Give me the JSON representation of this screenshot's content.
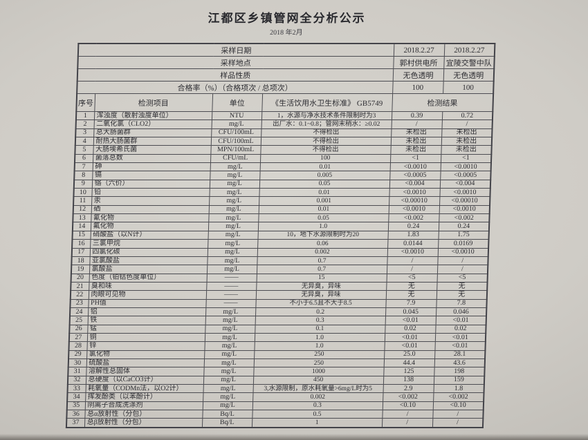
{
  "page": {
    "title": "江都区乡镇管网全分析公示",
    "subtitle": "2018 年2月"
  },
  "columns": {
    "no": "序号",
    "item": "检测项目",
    "unit": "单位",
    "standard": "《生活饮用水卫生标准》 GB5749",
    "result": "检测结果"
  },
  "info_rows": [
    {
      "label": "采样日期",
      "v1": "2018.2.27",
      "v2": "2018.2.27"
    },
    {
      "label": "采样地点",
      "v1": "郭村供电所",
      "v2": "宜陵交警中队"
    },
    {
      "label": "样品性质",
      "v1": "无色透明",
      "v2": "无色透明"
    },
    {
      "label": "合格率（%）（合格项次 / 总项次）",
      "v1": "100",
      "v2": "100"
    }
  ],
  "rows": [
    {
      "no": "1",
      "item": "浑浊度（散射浊度单位）",
      "unit": "NTU",
      "standard": "1，水源与净水技术条件限制时为3",
      "r1": "0.39",
      "r2": "0.72"
    },
    {
      "no": "2",
      "item": "二氧化氯（CLO2）",
      "unit": "mg/L",
      "standard": "出厂水：0.1~0.8；管网末稍水：≥0.02",
      "r1": "/",
      "r2": "/"
    },
    {
      "no": "3",
      "item": "总大肠菌群",
      "unit": "CFU/100mL",
      "standard": "不得检出",
      "r1": "未检出",
      "r2": "未检出"
    },
    {
      "no": "4",
      "item": "耐热大肠菌群",
      "unit": "CFU/100mL",
      "standard": "不得检出",
      "r1": "未检出",
      "r2": "未检出"
    },
    {
      "no": "5",
      "item": "大肠埃希氏菌",
      "unit": "MPN/100mL",
      "standard": "不得检出",
      "r1": "未检出",
      "r2": "未检出"
    },
    {
      "no": "6",
      "item": "菌落总数",
      "unit": "CFU/mL",
      "standard": "100",
      "r1": "<1",
      "r2": "<1"
    },
    {
      "no": "7",
      "item": "砷",
      "unit": "mg/L",
      "standard": "0.01",
      "r1": "<0.0010",
      "r2": "<0.0010"
    },
    {
      "no": "8",
      "item": "镉",
      "unit": "mg/L",
      "standard": "0.005",
      "r1": "<0.0005",
      "r2": "<0.0005"
    },
    {
      "no": "9",
      "item": "铬（六价）",
      "unit": "mg/L",
      "standard": "0.05",
      "r1": "<0.004",
      "r2": "<0.004"
    },
    {
      "no": "10",
      "item": "铅",
      "unit": "mg/L",
      "standard": "0.01",
      "r1": "<0.0010",
      "r2": "<0.0010"
    },
    {
      "no": "11",
      "item": "汞",
      "unit": "mg/L",
      "standard": "0.001",
      "r1": "<0.00010",
      "r2": "<0.00010"
    },
    {
      "no": "12",
      "item": "硒",
      "unit": "mg/L",
      "standard": "0.01",
      "r1": "<0.0010",
      "r2": "<0.0010"
    },
    {
      "no": "13",
      "item": "氰化物",
      "unit": "mg/L",
      "standard": "0.05",
      "r1": "<0.002",
      "r2": "<0.002"
    },
    {
      "no": "14",
      "item": "氟化物",
      "unit": "mg/L",
      "standard": "1.0",
      "r1": "0.24",
      "r2": "0.24"
    },
    {
      "no": "15",
      "item": "硝酸盐（以N计）",
      "unit": "mg/L",
      "standard": "10，地下水源限制时为20",
      "r1": "1.83",
      "r2": "1.75"
    },
    {
      "no": "16",
      "item": "三氯甲烷",
      "unit": "mg/L",
      "standard": "0.06",
      "r1": "0.0144",
      "r2": "0.0169"
    },
    {
      "no": "17",
      "item": "四氯化碳",
      "unit": "mg/L",
      "standard": "0.002",
      "r1": "<0.0010",
      "r2": "<0.0010"
    },
    {
      "no": "18",
      "item": "亚氯酸盐",
      "unit": "mg/L",
      "standard": "0.7",
      "r1": "/",
      "r2": "/"
    },
    {
      "no": "19",
      "item": "氯酸盐",
      "unit": "mg/L",
      "standard": "0.7",
      "r1": "/",
      "r2": "/"
    },
    {
      "no": "20",
      "item": "色度（铂钴色度单位）",
      "unit": "——",
      "standard": "15",
      "r1": "<5",
      "r2": "<5"
    },
    {
      "no": "21",
      "item": "臭和味",
      "unit": "——",
      "standard": "无异臭，异味",
      "r1": "无",
      "r2": "无"
    },
    {
      "no": "22",
      "item": "肉眼可见物",
      "unit": "——",
      "standard": "无异臭，异味",
      "r1": "无",
      "r2": "无"
    },
    {
      "no": "23",
      "item": "PH值",
      "unit": "——",
      "standard": "不小于6.5且不大于8.5",
      "r1": "7.9",
      "r2": "7.8"
    },
    {
      "no": "24",
      "item": "铝",
      "unit": "mg/L",
      "standard": "0.2",
      "r1": "0.045",
      "r2": "0.046"
    },
    {
      "no": "25",
      "item": "铁",
      "unit": "mg/L",
      "standard": "0.3",
      "r1": "<0.01",
      "r2": "<0.01"
    },
    {
      "no": "26",
      "item": "锰",
      "unit": "mg/L",
      "standard": "0.1",
      "r1": "0.02",
      "r2": "0.02"
    },
    {
      "no": "27",
      "item": "铜",
      "unit": "mg/L",
      "standard": "1.0",
      "r1": "<0.01",
      "r2": "<0.01"
    },
    {
      "no": "28",
      "item": "锌",
      "unit": "mg/L",
      "standard": "1.0",
      "r1": "<0.01",
      "r2": "<0.01"
    },
    {
      "no": "29",
      "item": "氯化物",
      "unit": "mg/L",
      "standard": "250",
      "r1": "25.0",
      "r2": "28.1"
    },
    {
      "no": "30",
      "item": "硫酸盐",
      "unit": "mg/L",
      "standard": "250",
      "r1": "44.4",
      "r2": "43.6"
    },
    {
      "no": "31",
      "item": "溶解性总固体",
      "unit": "mg/L",
      "standard": "1000",
      "r1": "125",
      "r2": "198"
    },
    {
      "no": "32",
      "item": "总硬度（以CaCO3计）",
      "unit": "mg/L",
      "standard": "450",
      "r1": "138",
      "r2": "159"
    },
    {
      "no": "33",
      "item": "耗氧量（CODMn法，以O2计）",
      "unit": "mg/L",
      "standard": "3,水源限制，原水耗氧量>6mg/L时为5",
      "r1": "2.9",
      "r2": "1.8"
    },
    {
      "no": "34",
      "item": "挥发酚类（以苯酚计）",
      "unit": "mg/L",
      "standard": "0.002",
      "r1": "<0.002",
      "r2": "<0.002"
    },
    {
      "no": "35",
      "item": "阴离子合成洗涤剂",
      "unit": "mg/L",
      "standard": "0.3",
      "r1": "<0.10",
      "r2": "<0.10"
    },
    {
      "no": "36",
      "item": "总α放射性（分包）",
      "unit": "Bq/L",
      "standard": "0.5",
      "r1": "/",
      "r2": "/"
    },
    {
      "no": "37",
      "item": "总β放射性（分包）",
      "unit": "Bq/L",
      "standard": "1",
      "r1": "/",
      "r2": "/"
    }
  ]
}
